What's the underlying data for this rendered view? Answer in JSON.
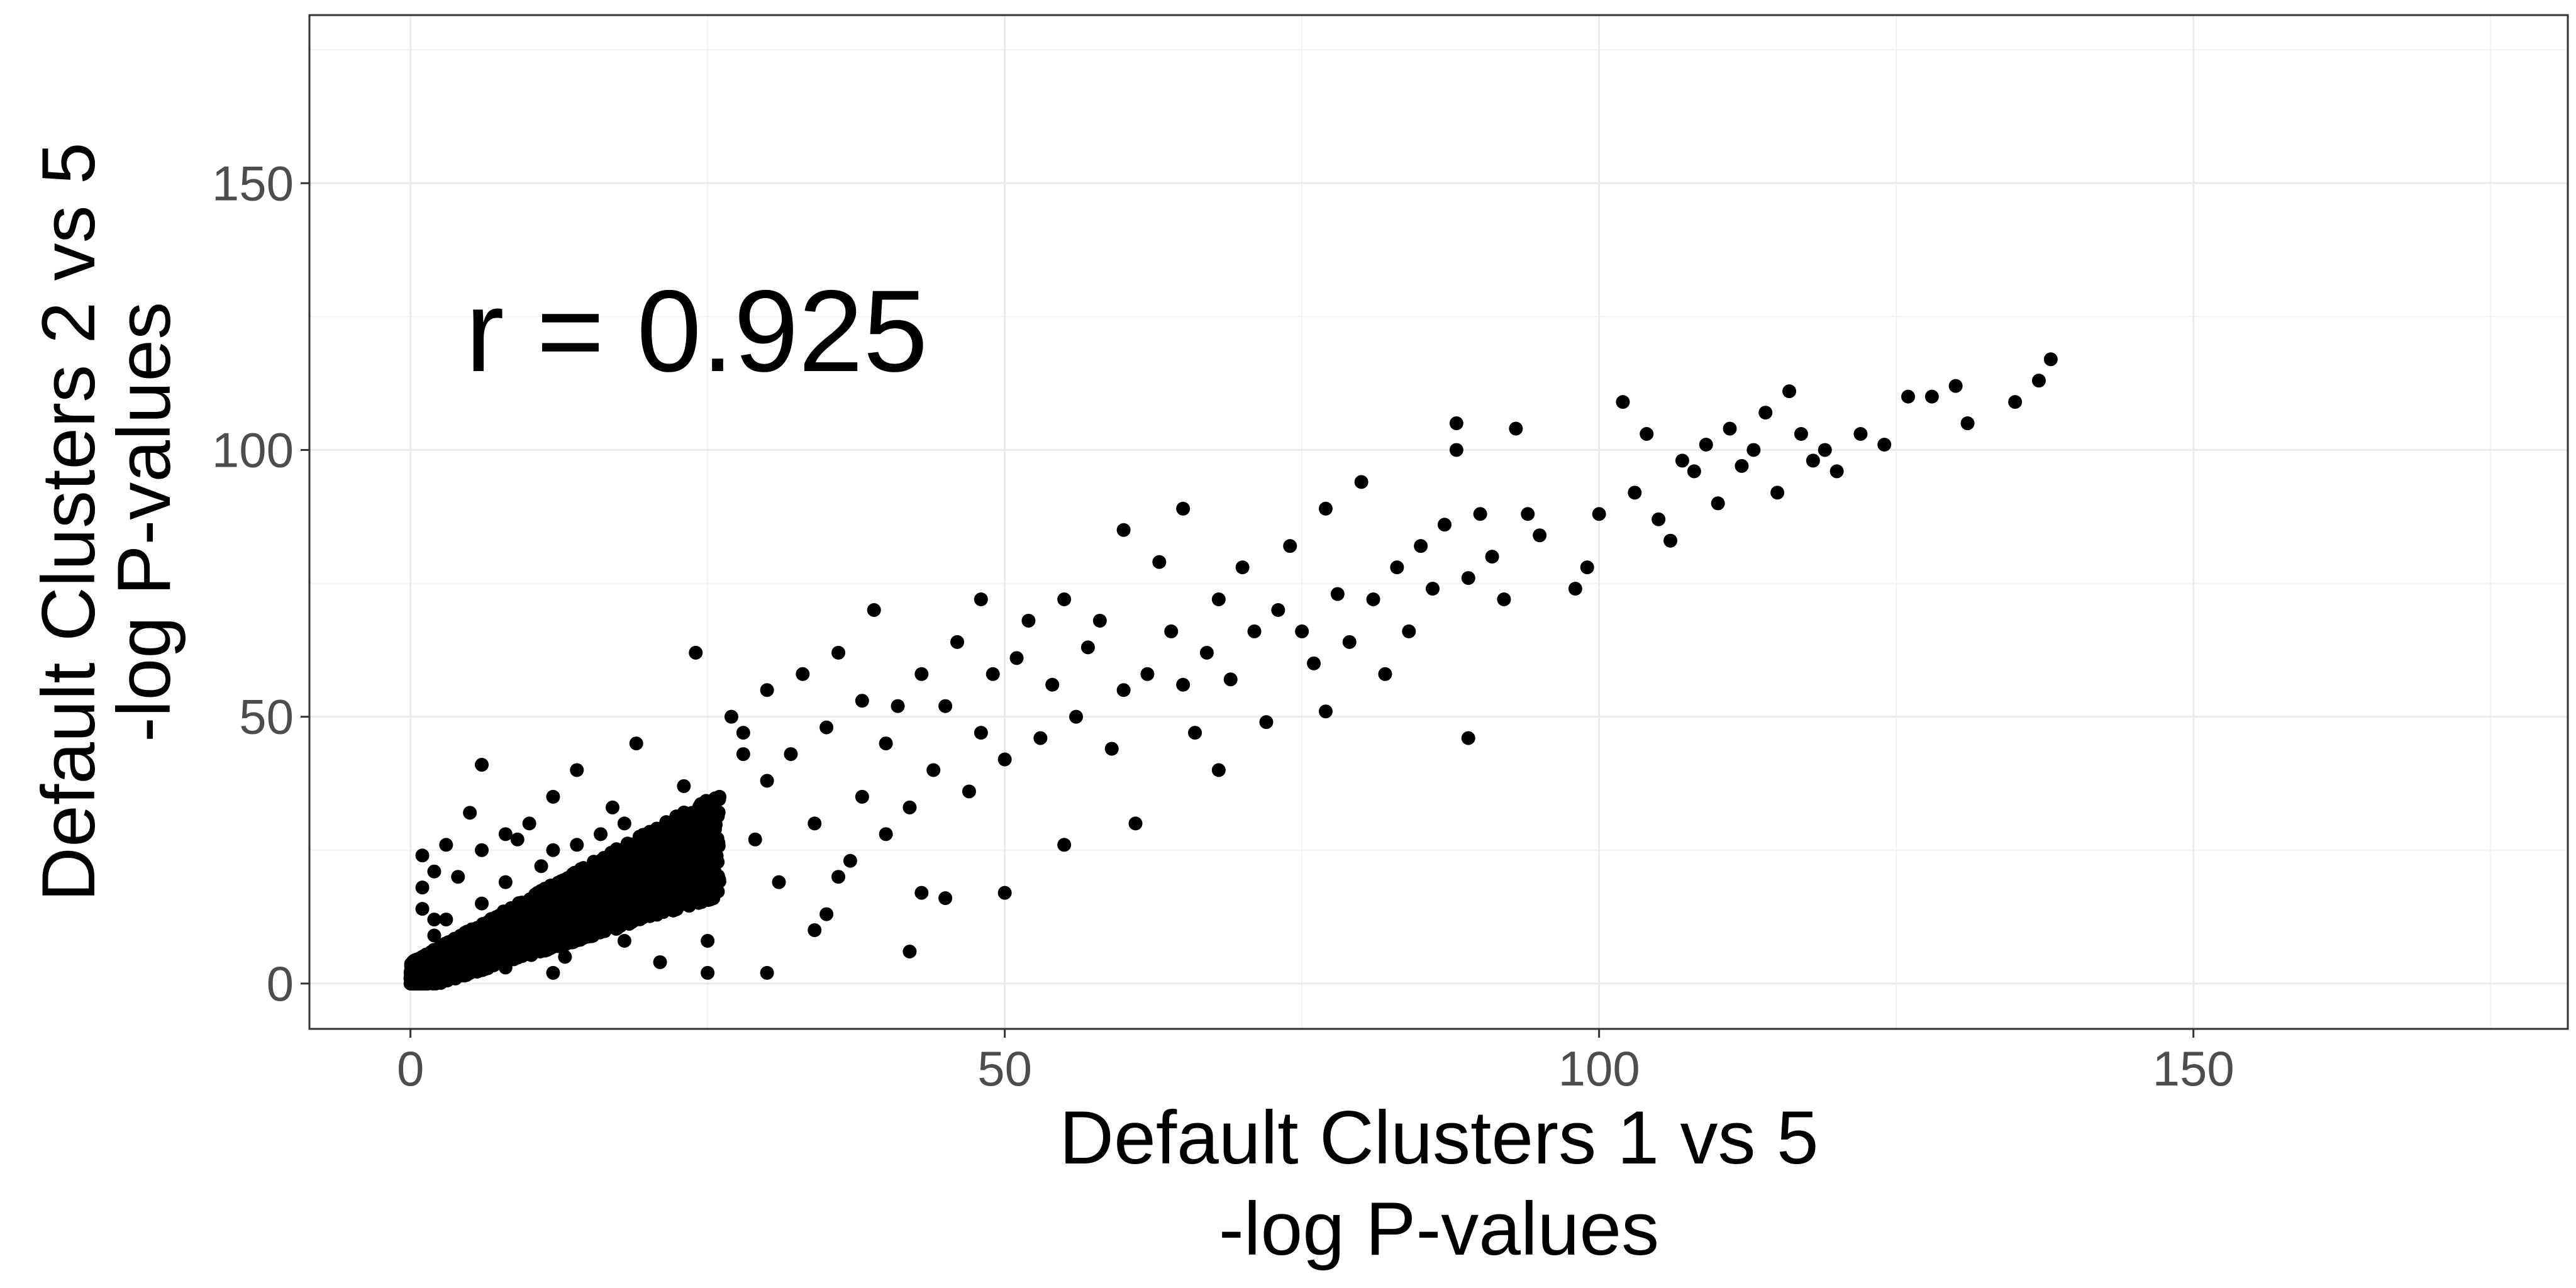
{
  "chart_data": {
    "type": "scatter",
    "title": "",
    "xlabel": [
      "Default Clusters 1 vs 5",
      "-log P-values"
    ],
    "ylabel": [
      "Default Clusters 2 vs 5",
      "-log P-values"
    ],
    "xlim": [
      -8.5,
      181.5
    ],
    "ylim": [
      -8.5,
      181.5
    ],
    "xticks": [
      0,
      50,
      100,
      150
    ],
    "yticks": [
      0,
      50,
      100,
      150
    ],
    "grid": true,
    "annotation": "r = 0.925",
    "point_color": "#000000",
    "points": [
      [
        1,
        1
      ],
      [
        1,
        3
      ],
      [
        1,
        5
      ],
      [
        2,
        2
      ],
      [
        2,
        6
      ],
      [
        2,
        9
      ],
      [
        3,
        3
      ],
      [
        3,
        12
      ],
      [
        1,
        14
      ],
      [
        1,
        18
      ],
      [
        2,
        21
      ],
      [
        1,
        24
      ],
      [
        3,
        26
      ],
      [
        5,
        32
      ],
      [
        6,
        41
      ],
      [
        4,
        4
      ],
      [
        5,
        8
      ],
      [
        6,
        15
      ],
      [
        7,
        11
      ],
      [
        8,
        3
      ],
      [
        8,
        19
      ],
      [
        9,
        27
      ],
      [
        10,
        14
      ],
      [
        10,
        7
      ],
      [
        11,
        22
      ],
      [
        12,
        35
      ],
      [
        12,
        2
      ],
      [
        13,
        18
      ],
      [
        14,
        40
      ],
      [
        15,
        10
      ],
      [
        5,
        2
      ],
      [
        7,
        6
      ],
      [
        9,
        10
      ],
      [
        11,
        13
      ],
      [
        13,
        5
      ],
      [
        14,
        26
      ],
      [
        16,
        21
      ],
      [
        17,
        33
      ],
      [
        18,
        8
      ],
      [
        19,
        45
      ],
      [
        20,
        28
      ],
      [
        21,
        4
      ],
      [
        22,
        17
      ],
      [
        23,
        37
      ],
      [
        24,
        62
      ],
      [
        2,
        12
      ],
      [
        4,
        20
      ],
      [
        6,
        25
      ],
      [
        8,
        28
      ],
      [
        10,
        30
      ],
      [
        12,
        25
      ],
      [
        14,
        12
      ],
      [
        16,
        28
      ],
      [
        18,
        30
      ],
      [
        20,
        15
      ],
      [
        22,
        30
      ],
      [
        24,
        22
      ],
      [
        25,
        8
      ],
      [
        26,
        35
      ],
      [
        27,
        50
      ],
      [
        28,
        47
      ],
      [
        29,
        27
      ],
      [
        30,
        55
      ],
      [
        30,
        38
      ],
      [
        31,
        19
      ],
      [
        32,
        43
      ],
      [
        33,
        58
      ],
      [
        34,
        30
      ],
      [
        35,
        48
      ],
      [
        35,
        13
      ],
      [
        36,
        62
      ],
      [
        37,
        23
      ],
      [
        38,
        53
      ],
      [
        38,
        35
      ],
      [
        39,
        70
      ],
      [
        40,
        28
      ],
      [
        40,
        45
      ],
      [
        41,
        52
      ],
      [
        42,
        33
      ],
      [
        43,
        58
      ],
      [
        44,
        40
      ],
      [
        45,
        16
      ],
      [
        45,
        52
      ],
      [
        46,
        64
      ],
      [
        47,
        36
      ],
      [
        48,
        47
      ],
      [
        48,
        72
      ],
      [
        49,
        58
      ],
      [
        50,
        42
      ],
      [
        50,
        17
      ],
      [
        51,
        61
      ],
      [
        52,
        68
      ],
      [
        53,
        46
      ],
      [
        54,
        56
      ],
      [
        55,
        26
      ],
      [
        55,
        72
      ],
      [
        56,
        50
      ],
      [
        57,
        63
      ],
      [
        58,
        68
      ],
      [
        59,
        44
      ],
      [
        60,
        85
      ],
      [
        60,
        55
      ],
      [
        61,
        30
      ],
      [
        62,
        58
      ],
      [
        63,
        79
      ],
      [
        64,
        66
      ],
      [
        65,
        56
      ],
      [
        65,
        89
      ],
      [
        66,
        47
      ],
      [
        67,
        62
      ],
      [
        68,
        72
      ],
      [
        68,
        40
      ],
      [
        69,
        57
      ],
      [
        70,
        78
      ],
      [
        71,
        66
      ],
      [
        72,
        49
      ],
      [
        73,
        70
      ],
      [
        74,
        82
      ],
      [
        75,
        66
      ],
      [
        76,
        60
      ],
      [
        77,
        89
      ],
      [
        77,
        51
      ],
      [
        78,
        73
      ],
      [
        79,
        64
      ],
      [
        80,
        94
      ],
      [
        81,
        72
      ],
      [
        82,
        58
      ],
      [
        83,
        78
      ],
      [
        84,
        66
      ],
      [
        85,
        82
      ],
      [
        86,
        74
      ],
      [
        87,
        86
      ],
      [
        88,
        100
      ],
      [
        88,
        105
      ],
      [
        89,
        76
      ],
      [
        89,
        46
      ],
      [
        90,
        88
      ],
      [
        91,
        80
      ],
      [
        92,
        72
      ],
      [
        93,
        104
      ],
      [
        94,
        88
      ],
      [
        95,
        84
      ],
      [
        98,
        74
      ],
      [
        99,
        78
      ],
      [
        100,
        88
      ],
      [
        102,
        109
      ],
      [
        103,
        92
      ],
      [
        104,
        103
      ],
      [
        105,
        87
      ],
      [
        106,
        83
      ],
      [
        107,
        98
      ],
      [
        108,
        96
      ],
      [
        109,
        101
      ],
      [
        110,
        90
      ],
      [
        111,
        104
      ],
      [
        112,
        97
      ],
      [
        113,
        100
      ],
      [
        114,
        107
      ],
      [
        115,
        92
      ],
      [
        116,
        111
      ],
      [
        117,
        103
      ],
      [
        118,
        98
      ],
      [
        119,
        100
      ],
      [
        120,
        96
      ],
      [
        122,
        103
      ],
      [
        124,
        101
      ],
      [
        126,
        110
      ],
      [
        128,
        110
      ],
      [
        130,
        112
      ],
      [
        131,
        105
      ],
      [
        135,
        109
      ],
      [
        138,
        117
      ],
      [
        137,
        113
      ],
      [
        42,
        6
      ],
      [
        25,
        2
      ],
      [
        30,
        2
      ],
      [
        34,
        10
      ],
      [
        43,
        17
      ],
      [
        28,
        43
      ],
      [
        36,
        20
      ]
    ]
  }
}
